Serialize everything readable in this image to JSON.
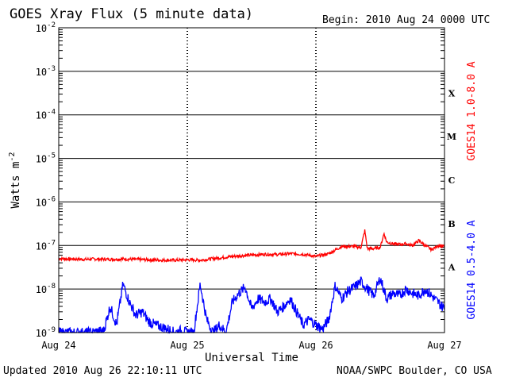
{
  "header": {
    "title": "GOES Xray Flux (5 minute data)",
    "begin": "Begin:  2010 Aug 24 0000 UTC"
  },
  "footer": {
    "updated": "Updated 2010 Aug 26 22:10:11 UTC",
    "credit": "NOAA/SWPC Boulder, CO USA"
  },
  "chart_data": {
    "type": "line",
    "title": "GOES Xray Flux (5 minute data)",
    "xlabel": "Universal Time",
    "ylabel": "Watts m",
    "ylabel_superscript": "-2",
    "y_scale": "log",
    "ylim": [
      1e-09,
      0.01
    ],
    "y_ticks": [
      {
        "base": "10",
        "exp": "-2"
      },
      {
        "base": "10",
        "exp": "-3"
      },
      {
        "base": "10",
        "exp": "-4"
      },
      {
        "base": "10",
        "exp": "-5"
      },
      {
        "base": "10",
        "exp": "-6"
      },
      {
        "base": "10",
        "exp": "-7"
      },
      {
        "base": "10",
        "exp": "-8"
      },
      {
        "base": "10",
        "exp": "-9"
      }
    ],
    "x_tick_labels": [
      "Aug 24",
      "Aug 25",
      "Aug 26",
      "Aug 27"
    ],
    "xlim_days": [
      24,
      27
    ],
    "flare_classes": [
      "X",
      "M",
      "C",
      "B",
      "A"
    ],
    "grid": true,
    "colors": {
      "long": "#ff0000",
      "short": "#0000ff"
    },
    "series": [
      {
        "name": "GOES14 1.0-8.0 A",
        "color": "#ff0000",
        "x": [
          24.0,
          24.1,
          24.2,
          24.3,
          24.4,
          24.5,
          24.6,
          24.7,
          24.8,
          24.9,
          25.0,
          25.1,
          25.2,
          25.3,
          25.4,
          25.5,
          25.6,
          25.7,
          25.8,
          25.9,
          26.0,
          26.1,
          26.2,
          26.3,
          26.35,
          26.38,
          26.4,
          26.45,
          26.5,
          26.53,
          26.55,
          26.6,
          26.65,
          26.7,
          26.75,
          26.8,
          26.85,
          26.9,
          26.95,
          27.0
        ],
        "values": [
          5e-08,
          4.9e-08,
          4.8e-08,
          4.9e-08,
          4.8e-08,
          4.9e-08,
          4.8e-08,
          4.7e-08,
          4.6e-08,
          4.6e-08,
          4.7e-08,
          4.6e-08,
          5e-08,
          5.4e-08,
          5.8e-08,
          6e-08,
          6.3e-08,
          6.2e-08,
          6.5e-08,
          6.3e-08,
          5.6e-08,
          6.5e-08,
          9.5e-08,
          9.5e-08,
          9e-08,
          2.2e-07,
          8.5e-08,
          8.5e-08,
          9e-08,
          1.9e-07,
          1.2e-07,
          1.1e-07,
          1.05e-07,
          1.1e-07,
          1e-07,
          1.3e-07,
          1e-07,
          8e-08,
          1e-07,
          9.5e-08
        ]
      },
      {
        "name": "GOES14 0.5-4.0 A",
        "color": "#0000ff",
        "x": [
          24.0,
          24.2,
          24.25,
          24.35,
          24.4,
          24.45,
          24.5,
          24.55,
          24.6,
          24.65,
          24.7,
          24.75,
          24.85,
          24.9,
          24.95,
          25.0,
          25.05,
          25.1,
          25.15,
          25.2,
          25.25,
          25.3,
          25.35,
          25.4,
          25.45,
          25.5,
          25.55,
          25.6,
          25.65,
          25.7,
          25.75,
          25.8,
          25.85,
          25.9,
          25.95,
          26.0,
          26.05,
          26.1,
          26.15,
          26.2,
          26.25,
          26.3,
          26.35,
          26.4,
          26.45,
          26.5,
          26.55,
          26.6,
          26.65,
          26.7,
          26.75,
          26.8,
          26.85,
          26.9,
          26.95,
          27.0
        ],
        "values": [
          1e-09,
          1e-09,
          1e-09,
          1.1e-09,
          4e-09,
          1.5e-09,
          1.3e-08,
          5e-09,
          2.5e-09,
          3e-09,
          1.8e-09,
          1.5e-09,
          1.2e-09,
          1e-09,
          1.1e-09,
          1e-09,
          1e-09,
          1.3e-08,
          2e-09,
          1e-09,
          1.5e-09,
          1e-09,
          5e-09,
          8e-09,
          1.1e-08,
          3.5e-09,
          6e-09,
          5e-09,
          6e-09,
          3e-09,
          4e-09,
          6e-09,
          3e-09,
          1.5e-09,
          2e-09,
          1.5e-09,
          1.2e-09,
          2e-09,
          1.2e-08,
          6e-09,
          9e-09,
          1.1e-08,
          1.5e-08,
          1e-08,
          7e-09,
          1.8e-08,
          6e-09,
          8e-09,
          7e-09,
          1e-08,
          8e-09,
          7e-09,
          1e-08,
          7e-09,
          5e-09,
          3.5e-09
        ]
      }
    ]
  }
}
